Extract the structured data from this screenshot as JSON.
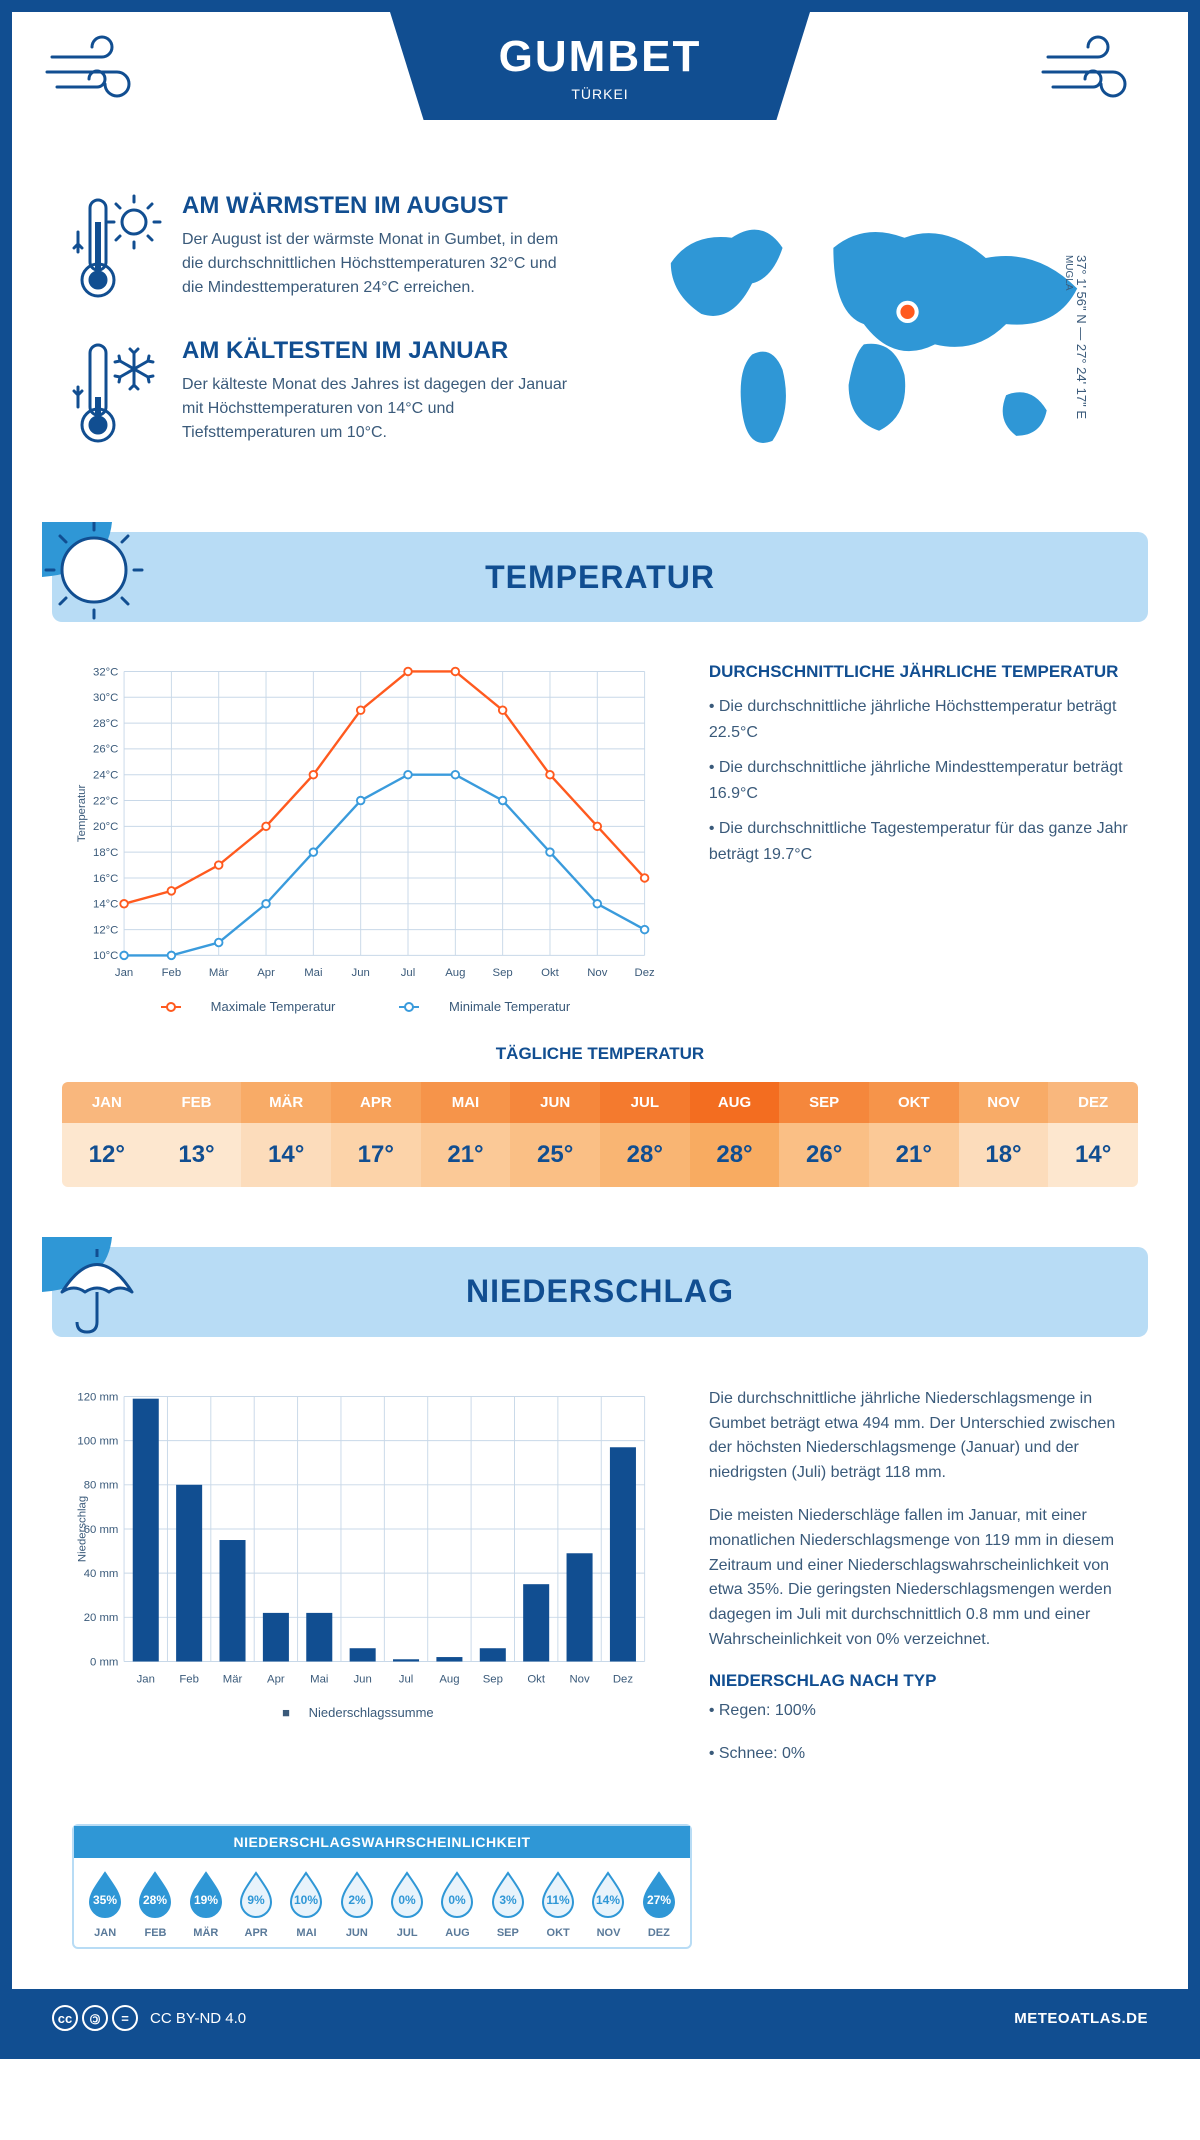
{
  "header": {
    "title": "GUMBET",
    "subtitle": "TÜRKEI"
  },
  "intro": {
    "warm": {
      "heading": "AM WÄRMSTEN IM AUGUST",
      "text": "Der August ist der wärmste Monat in Gumbet, in dem die durchschnittlichen Höchsttemperaturen 32°C und die Mindesttemperaturen 24°C erreichen."
    },
    "cold": {
      "heading": "AM KÄLTESTEN IM JANUAR",
      "text": "Der kälteste Monat des Jahres ist dagegen der Januar mit Höchsttemperaturen von 14°C und Tiefsttemperaturen um 10°C."
    },
    "coords": "37° 1' 56\" N — 27° 24' 17\" E",
    "region": "MUGLA"
  },
  "temperature": {
    "section_title": "TEMPERATUR",
    "chart": {
      "months": [
        "Jan",
        "Feb",
        "Mär",
        "Apr",
        "Mai",
        "Jun",
        "Jul",
        "Aug",
        "Sep",
        "Okt",
        "Nov",
        "Dez"
      ],
      "max_series": [
        14,
        15,
        17,
        20,
        24,
        29,
        32,
        32,
        29,
        24,
        20,
        16
      ],
      "min_series": [
        10,
        10,
        11,
        14,
        18,
        22,
        24,
        24,
        22,
        18,
        14,
        12
      ],
      "ymin": 10,
      "ymax": 32,
      "ystep": 2,
      "ylabel": "Temperatur",
      "max_color": "#ff5a1f",
      "min_color": "#3a9bdc",
      "grid_color": "#c8d8e8",
      "legend_max": "Maximale Temperatur",
      "legend_min": "Minimale Temperatur"
    },
    "facts": {
      "heading": "DURCHSCHNITTLICHE JÄHRLICHE TEMPERATUR",
      "items": [
        "• Die durchschnittliche jährliche Höchsttemperatur beträgt 22.5°C",
        "• Die durchschnittliche jährliche Mindesttemperatur beträgt 16.9°C",
        "• Die durchschnittliche Tagestemperatur für das ganze Jahr beträgt 19.7°C"
      ]
    },
    "daily": {
      "heading": "TÄGLICHE TEMPERATUR",
      "months": [
        "JAN",
        "FEB",
        "MÄR",
        "APR",
        "MAI",
        "JUN",
        "JUL",
        "AUG",
        "SEP",
        "OKT",
        "NOV",
        "DEZ"
      ],
      "values": [
        "12°",
        "13°",
        "14°",
        "17°",
        "21°",
        "25°",
        "28°",
        "28°",
        "26°",
        "21°",
        "18°",
        "14°"
      ],
      "head_colors": [
        "#f9b77d",
        "#f9b77d",
        "#f8ab67",
        "#f7a159",
        "#f6944a",
        "#f5873c",
        "#f47a2e",
        "#f36d20",
        "#f5873c",
        "#f6944a",
        "#f8ab67",
        "#f9b77d"
      ],
      "val_colors": [
        "#fde7cf",
        "#fde7cf",
        "#fcdcbb",
        "#fcd3a9",
        "#fbc997",
        "#fabf85",
        "#f9b573",
        "#f8ab61",
        "#fabf85",
        "#fbc997",
        "#fcdcbb",
        "#fde7cf"
      ]
    }
  },
  "precipitation": {
    "section_title": "NIEDERSCHLAG",
    "chart": {
      "months": [
        "Jan",
        "Feb",
        "Mär",
        "Apr",
        "Mai",
        "Jun",
        "Jul",
        "Aug",
        "Sep",
        "Okt",
        "Nov",
        "Dez"
      ],
      "values": [
        119,
        80,
        55,
        22,
        22,
        6,
        1,
        2,
        6,
        35,
        49,
        97
      ],
      "ymax": 120,
      "ystep": 20,
      "ylabel": "Niederschlag",
      "bar_color": "#114e91",
      "grid_color": "#c8d8e8",
      "legend": "Niederschlagssumme"
    },
    "text1": "Die durchschnittliche jährliche Niederschlagsmenge in Gumbet beträgt etwa 494 mm. Der Unterschied zwischen der höchsten Niederschlagsmenge (Januar) und der niedrigsten (Juli) beträgt 118 mm.",
    "text2": "Die meisten Niederschläge fallen im Januar, mit einer monatlichen Niederschlagsmenge von 119 mm in diesem Zeitraum und einer Niederschlagswahrscheinlichkeit von etwa 35%. Die geringsten Niederschlagsmengen werden dagegen im Juli mit durchschnittlich 0.8 mm und einer Wahrscheinlichkeit von 0% verzeichnet.",
    "type_heading": "NIEDERSCHLAG NACH TYP",
    "type_items": [
      "• Regen: 100%",
      "• Schnee: 0%"
    ],
    "probability": {
      "heading": "NIEDERSCHLAGSWAHRSCHEINLICHKEIT",
      "months": [
        "JAN",
        "FEB",
        "MÄR",
        "APR",
        "MAI",
        "JUN",
        "JUL",
        "AUG",
        "SEP",
        "OKT",
        "NOV",
        "DEZ"
      ],
      "values": [
        35,
        28,
        19,
        9,
        10,
        2,
        0,
        0,
        3,
        11,
        14,
        27
      ],
      "fill_color": "#2f97d6",
      "empty_color": "#e8f3fb",
      "outline_color": "#2f97d6"
    }
  },
  "footer": {
    "license": "CC BY-ND 4.0",
    "site": "METEOATLAS.DE"
  },
  "colors": {
    "primary": "#114e91",
    "light_blue": "#b8dcf5",
    "mid_blue": "#2f97d6",
    "text": "#3a5a7a"
  }
}
